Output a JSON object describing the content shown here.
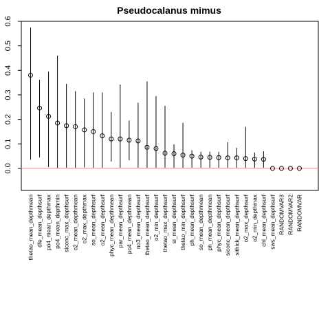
{
  "chart_data": {
    "type": "scatter",
    "title": "Pseudocalanus mimus",
    "xlabel": "",
    "ylabel": "",
    "ylim": [
      -0.09,
      0.6
    ],
    "yticks": [
      "0.0",
      "0.1",
      "0.2",
      "0.3",
      "0.4",
      "0.5",
      "0.6"
    ],
    "ytick_values": [
      0.0,
      0.1,
      0.2,
      0.3,
      0.4,
      0.5,
      0.6
    ],
    "reference_line": {
      "y": 0.0,
      "color": "#ff8080"
    },
    "point_style": "open-circle",
    "grid": false,
    "categories": [
      "thetao_mean_depthmean",
      "dfe_mean_depthsurf",
      "po4_mean_depthmax",
      "po4_mean_depthmin",
      "siconc_max_depthsurf",
      "o2_mean_depthmean",
      "o2_max_depthmax",
      "so_mean_depthsurf",
      "o2_mean_depthsurf",
      "phyc_mean_depthmean",
      "par_mean_depthsurf",
      "po4_mean_depthmean",
      "no3_mean_depthsurf",
      "thetao_mean_depthsurf",
      "o2_min_depthsurf",
      "thetao_max_depthsurf",
      "si_mean_depthsurf",
      "thetao_min_depthsurf",
      "ph_mean_depthsurf",
      "so_mean_depthmean",
      "ph_mean_depthmean",
      "phyc_mean_depthsurf",
      "siconc_mean_depthsurf",
      "sithick_mean_depthsurf",
      "o2_max_depthsurf",
      "o2_min_depthmax",
      "chl_mean_depthsurf",
      "sws_mean_depthsurf",
      "RANDOMVAR3",
      "RANDOMVAR2",
      "RANDOMVAR"
    ],
    "series": [
      {
        "values": [
          0.38,
          0.246,
          0.212,
          0.185,
          0.174,
          0.17,
          0.157,
          0.15,
          0.133,
          0.12,
          0.12,
          0.115,
          0.112,
          0.086,
          0.081,
          0.062,
          0.06,
          0.054,
          0.05,
          0.046,
          0.045,
          0.044,
          0.043,
          0.043,
          0.04,
          0.038,
          0.037,
          0.0,
          0.0,
          0.0,
          0.0
        ],
        "lower": [
          0.035,
          0.045,
          0.005,
          0.002,
          0.003,
          0.003,
          0.004,
          0.003,
          0.003,
          0.028,
          0.003,
          0.033,
          0.003,
          0.003,
          0.003,
          0.003,
          0.003,
          0.003,
          0.003,
          0.003,
          0.003,
          0.003,
          0.003,
          0.003,
          0.003,
          0.003,
          0.003,
          0.0,
          0.0,
          0.0,
          0.0
        ],
        "upper": [
          0.575,
          0.362,
          0.395,
          0.46,
          0.345,
          0.315,
          0.285,
          0.31,
          0.31,
          0.23,
          0.342,
          0.195,
          0.268,
          0.355,
          0.295,
          0.255,
          0.098,
          0.186,
          0.074,
          0.068,
          0.068,
          0.068,
          0.107,
          0.084,
          0.17,
          0.065,
          0.07,
          0.0,
          0.0,
          0.0,
          0.0
        ]
      }
    ]
  }
}
